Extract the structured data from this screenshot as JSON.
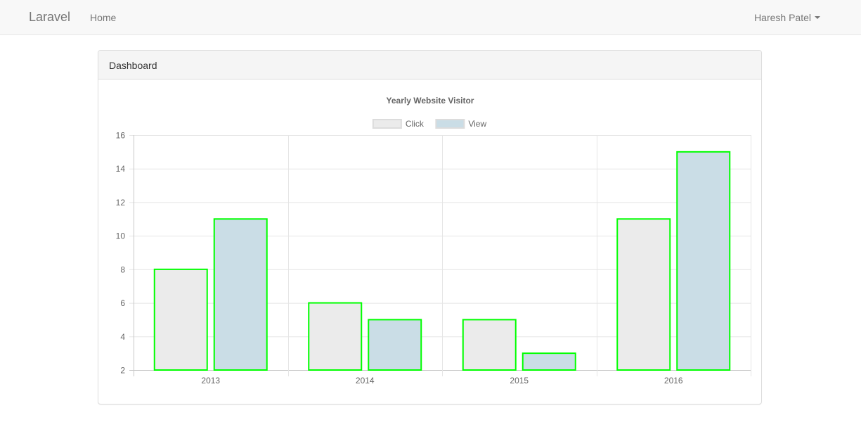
{
  "navbar": {
    "brand": "Laravel",
    "home": "Home",
    "user": "Haresh Patel"
  },
  "panel": {
    "heading": "Dashboard"
  },
  "colors": {
    "click_fill": "#ebebeb",
    "view_fill": "#cadde6",
    "bar_border": "#00ff00",
    "grid": "#e5e5e5",
    "axis": "#c8c8c8",
    "text": "#666666"
  },
  "chart_data": {
    "type": "bar",
    "title": "Yearly Website Visitor",
    "categories": [
      "2013",
      "2014",
      "2015",
      "2016"
    ],
    "series": [
      {
        "name": "Click",
        "values": [
          8,
          6,
          5,
          11
        ]
      },
      {
        "name": "View",
        "values": [
          11,
          5,
          3,
          15
        ]
      }
    ],
    "ylim": [
      2,
      16
    ],
    "yticks": [
      2,
      4,
      6,
      8,
      10,
      12,
      14,
      16
    ],
    "grid": true,
    "legend": "top-center"
  }
}
